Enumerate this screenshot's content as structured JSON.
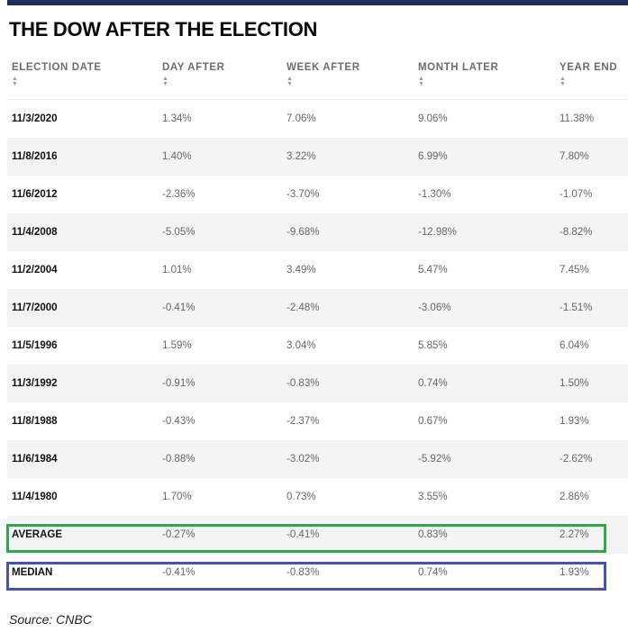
{
  "title": "THE DOW AFTER THE ELECTION",
  "source": "Source: CNBC",
  "sort_icon": "sort-arrows-icon",
  "chart_data": {
    "type": "table",
    "title": "THE DOW AFTER THE ELECTION",
    "columns": [
      "ELECTION DATE",
      "DAY AFTER",
      "WEEK AFTER",
      "MONTH LATER",
      "YEAR END"
    ],
    "rows": [
      [
        "11/3/2020",
        "1.34%",
        "7.06%",
        "9.06%",
        "11.38%"
      ],
      [
        "11/8/2016",
        "1.40%",
        "3.22%",
        "6.99%",
        "7.80%"
      ],
      [
        "11/6/2012",
        "-2.36%",
        "-3.70%",
        "-1.30%",
        "-1.07%"
      ],
      [
        "11/4/2008",
        "-5.05%",
        "-9.68%",
        "-12.98%",
        "-8.82%"
      ],
      [
        "11/2/2004",
        "1.01%",
        "3.49%",
        "5.47%",
        "7.45%"
      ],
      [
        "11/7/2000",
        "-0.41%",
        "-2.48%",
        "-3.06%",
        "-1.51%"
      ],
      [
        "11/5/1996",
        "1.59%",
        "3.04%",
        "5.85%",
        "6.04%"
      ],
      [
        "11/3/1992",
        "-0.91%",
        "-0.83%",
        "0.74%",
        "1.50%"
      ],
      [
        "11/8/1988",
        "-0.43%",
        "-2.37%",
        "0.67%",
        "1.93%"
      ],
      [
        "11/6/1984",
        "-0.88%",
        "-3.02%",
        "-5.92%",
        "-2.62%"
      ],
      [
        "11/4/1980",
        "1.70%",
        "0.73%",
        "3.55%",
        "2.86%"
      ],
      [
        "AVERAGE",
        "-0.27%",
        "-0.41%",
        "0.83%",
        "2.27%"
      ],
      [
        "MEDIAN",
        "-0.41%",
        "-0.83%",
        "0.74%",
        "1.93%"
      ]
    ],
    "highlights": [
      {
        "row": "AVERAGE",
        "color": "#2ea84a"
      },
      {
        "row": "MEDIAN",
        "color": "#4b50b8"
      }
    ]
  }
}
